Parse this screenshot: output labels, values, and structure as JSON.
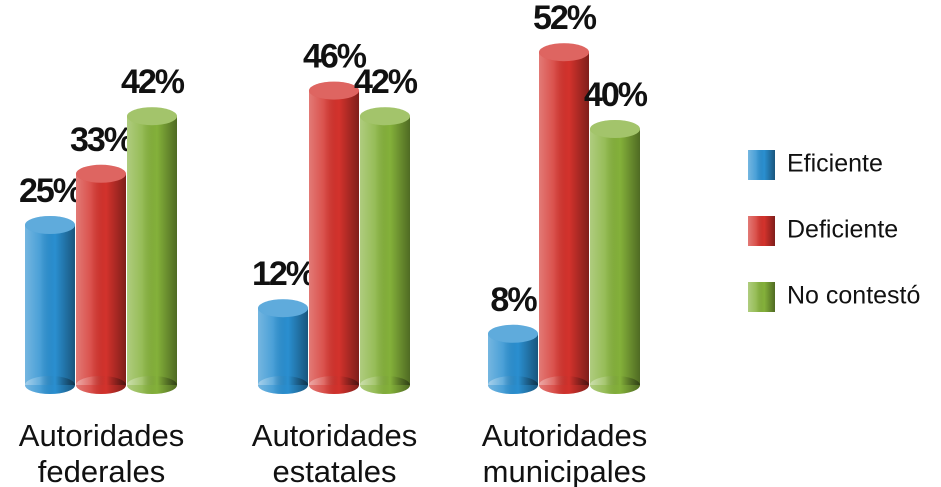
{
  "chart_data": {
    "type": "bar",
    "categories": [
      "Autoridades federales",
      "Autoridades estatales",
      "Autoridades municipales"
    ],
    "series": [
      {
        "name": "Eficiente",
        "color": "#2a8fd0",
        "values": [
          25,
          12,
          8
        ],
        "value_labels": [
          "25%",
          "12%",
          "8%"
        ]
      },
      {
        "name": "Deficiente",
        "color": "#d3322c",
        "values": [
          33,
          46,
          52
        ],
        "value_labels": [
          "33%",
          "46%",
          "52%"
        ]
      },
      {
        "name": "No contestó",
        "color": "#84b13a",
        "values": [
          42,
          42,
          40
        ],
        "value_labels": [
          "42%",
          "42%",
          "40%"
        ]
      }
    ],
    "legend": "right"
  }
}
